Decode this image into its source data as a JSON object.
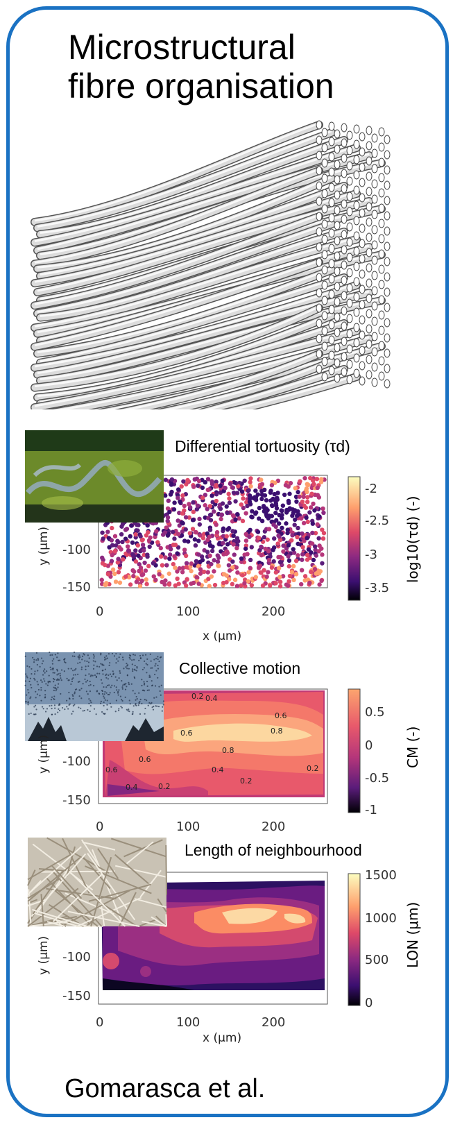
{
  "title_lines": [
    "Microstructural",
    "fibre organisation"
  ],
  "author": "Gomarasca et al.",
  "panels": [
    {
      "title": "Differential tortuosity (τd)",
      "photo": "river-meander-photo",
      "colorbar_label": "log10(τd) (-)",
      "colorbar_ticks": [
        "-2",
        "-2.5",
        "-3",
        "-3.5"
      ],
      "y_label": "y (μm)",
      "y_ticks": [
        "-100",
        "-150"
      ],
      "x_label": "x (μm)",
      "x_ticks": [
        "0",
        "100",
        "200"
      ]
    },
    {
      "title": "Collective motion",
      "photo": "starling-flock-photo",
      "colorbar_label": "CM (-)",
      "colorbar_ticks": [
        "0.5",
        "0",
        "-0.5",
        "-1"
      ],
      "y_label": "y (μm)",
      "y_ticks": [
        "-100",
        "-150"
      ],
      "x_ticks": [
        "0",
        "100",
        "200"
      ],
      "contour_labels": [
        "0.8",
        "0.8",
        "0.6",
        "0.6",
        "0.6",
        "0.4",
        "0.4",
        "0.2",
        "0.2",
        "0.2",
        "0.4",
        "0.6",
        "0.2"
      ]
    },
    {
      "title": "Length of neighbourhood",
      "photo": "straw-fibres-photo",
      "colorbar_label": "LON (μm)",
      "colorbar_ticks": [
        "1500",
        "1000",
        "500",
        "0"
      ],
      "y_label": "y (μm)",
      "y_ticks": [
        "-100",
        "-150"
      ],
      "x_label": "x (μm)",
      "x_ticks": [
        "0",
        "100",
        "200"
      ]
    }
  ],
  "colors": {
    "frame": "#1a72c3",
    "magma": [
      "#000004",
      "#3b0f70",
      "#8c2981",
      "#de4968",
      "#fe9f6d",
      "#fcfdbf"
    ]
  }
}
